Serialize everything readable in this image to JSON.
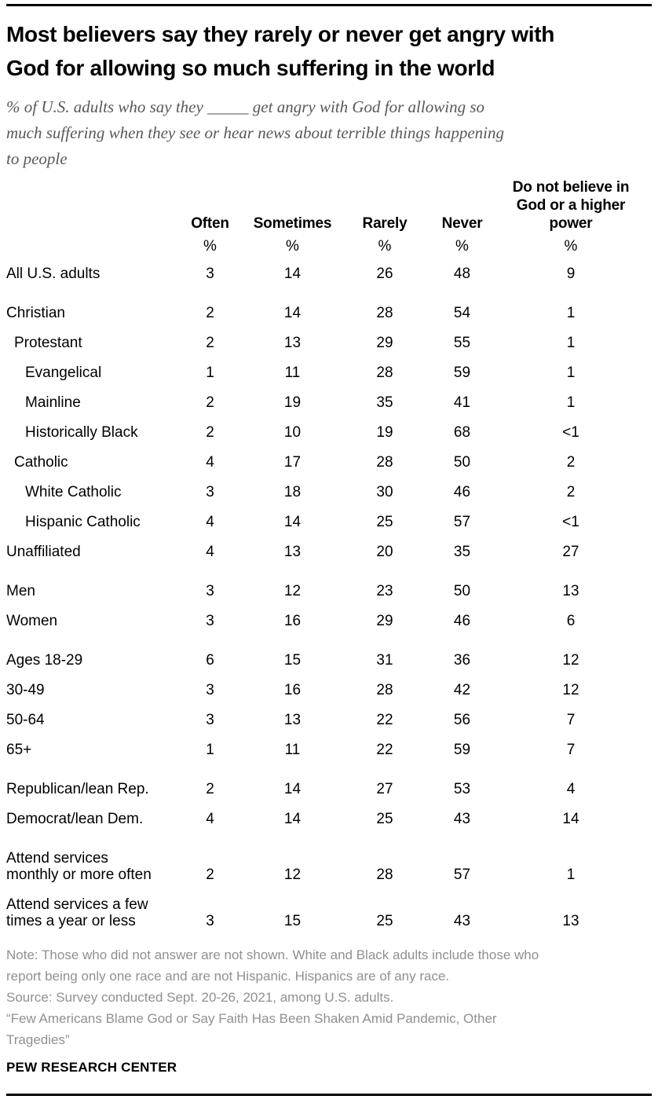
{
  "title": "Most believers say they rarely or never get angry with\nGod for allowing so much suffering in the world",
  "subtitle": "% of U.S. adults who say they _____ get angry with God for allowing so\nmuch suffering when they see or hear news about terrible things happening\nto people",
  "table": {
    "header_display": [
      "Often",
      "Sometimes",
      "Rarely",
      "Never",
      "Do not believe in\nGod or a higher\npower"
    ],
    "unit_symbol": "%"
  },
  "chart_data": {
    "type": "table",
    "title": "Most believers say they rarely or never get angry with God for allowing so much suffering in the world",
    "subtitle": "% of U.S. adults who say they _____ get angry with God for allowing so much suffering when they see or hear news about terrible things happening to people",
    "columns": [
      "Often",
      "Sometimes",
      "Rarely",
      "Never",
      "Do not believe in God or a higher power"
    ],
    "unit": "%",
    "rows": [
      {
        "label": "All U.S. adults",
        "indent": 0,
        "gap_before": false,
        "values": [
          "3",
          "14",
          "26",
          "48",
          "9"
        ]
      },
      {
        "label": "Christian",
        "indent": 0,
        "gap_before": true,
        "values": [
          "2",
          "14",
          "28",
          "54",
          "1"
        ]
      },
      {
        "label": "Protestant",
        "indent": 1,
        "gap_before": false,
        "values": [
          "2",
          "13",
          "29",
          "55",
          "1"
        ]
      },
      {
        "label": "Evangelical",
        "indent": 2,
        "gap_before": false,
        "values": [
          "1",
          "11",
          "28",
          "59",
          "1"
        ]
      },
      {
        "label": "Mainline",
        "indent": 2,
        "gap_before": false,
        "values": [
          "2",
          "19",
          "35",
          "41",
          "1"
        ]
      },
      {
        "label": "Historically Black",
        "indent": 2,
        "gap_before": false,
        "values": [
          "2",
          "10",
          "19",
          "68",
          "<1"
        ]
      },
      {
        "label": "Catholic",
        "indent": 1,
        "gap_before": false,
        "values": [
          "4",
          "17",
          "28",
          "50",
          "2"
        ]
      },
      {
        "label": "White Catholic",
        "indent": 2,
        "gap_before": false,
        "values": [
          "3",
          "18",
          "30",
          "46",
          "2"
        ]
      },
      {
        "label": "Hispanic Catholic",
        "indent": 2,
        "gap_before": false,
        "values": [
          "4",
          "14",
          "25",
          "57",
          "<1"
        ]
      },
      {
        "label": "Unaffiliated",
        "indent": 0,
        "gap_before": false,
        "values": [
          "4",
          "13",
          "20",
          "35",
          "27"
        ]
      },
      {
        "label": "Men",
        "indent": 0,
        "gap_before": true,
        "values": [
          "3",
          "12",
          "23",
          "50",
          "13"
        ]
      },
      {
        "label": "Women",
        "indent": 0,
        "gap_before": false,
        "values": [
          "3",
          "16",
          "29",
          "46",
          "6"
        ]
      },
      {
        "label": "Ages 18-29",
        "indent": 0,
        "gap_before": true,
        "values": [
          "6",
          "15",
          "31",
          "36",
          "12"
        ]
      },
      {
        "label": "30-49",
        "indent": 0,
        "gap_before": false,
        "values": [
          "3",
          "16",
          "28",
          "42",
          "12"
        ]
      },
      {
        "label": "50-64",
        "indent": 0,
        "gap_before": false,
        "values": [
          "3",
          "13",
          "22",
          "56",
          "7"
        ]
      },
      {
        "label": "65+",
        "indent": 0,
        "gap_before": false,
        "values": [
          "1",
          "11",
          "22",
          "59",
          "7"
        ]
      },
      {
        "label": "Republican/lean Rep.",
        "indent": 0,
        "gap_before": true,
        "values": [
          "2",
          "14",
          "27",
          "53",
          "4"
        ]
      },
      {
        "label": "Democrat/lean Dem.",
        "indent": 0,
        "gap_before": false,
        "values": [
          "4",
          "14",
          "25",
          "43",
          "14"
        ]
      },
      {
        "label": "Attend services\nmonthly or more often",
        "indent": 0,
        "gap_before": true,
        "values": [
          "2",
          "12",
          "28",
          "57",
          "1"
        ]
      },
      {
        "label": "Attend services a few\ntimes a year or less",
        "indent": 0,
        "gap_before": false,
        "values": [
          "3",
          "15",
          "25",
          "43",
          "13"
        ]
      }
    ]
  },
  "footer": {
    "note": "Note: Those who did not answer are not shown. White and Black adults include those who\nreport being only one race and are not Hispanic. Hispanics are of any race.",
    "source": "Source: Survey conducted Sept. 20-26, 2021, among U.S. adults.",
    "report": "“Few Americans Blame God or Say Faith Has Been Shaken Amid Pandemic, Other\nTragedies”",
    "brand": "PEW RESEARCH CENTER"
  },
  "colors": {
    "rule": "#000000",
    "title_text": "#000000",
    "subtitle_text": "#58585a",
    "table_text": "#000000",
    "note_text": "#909092"
  }
}
